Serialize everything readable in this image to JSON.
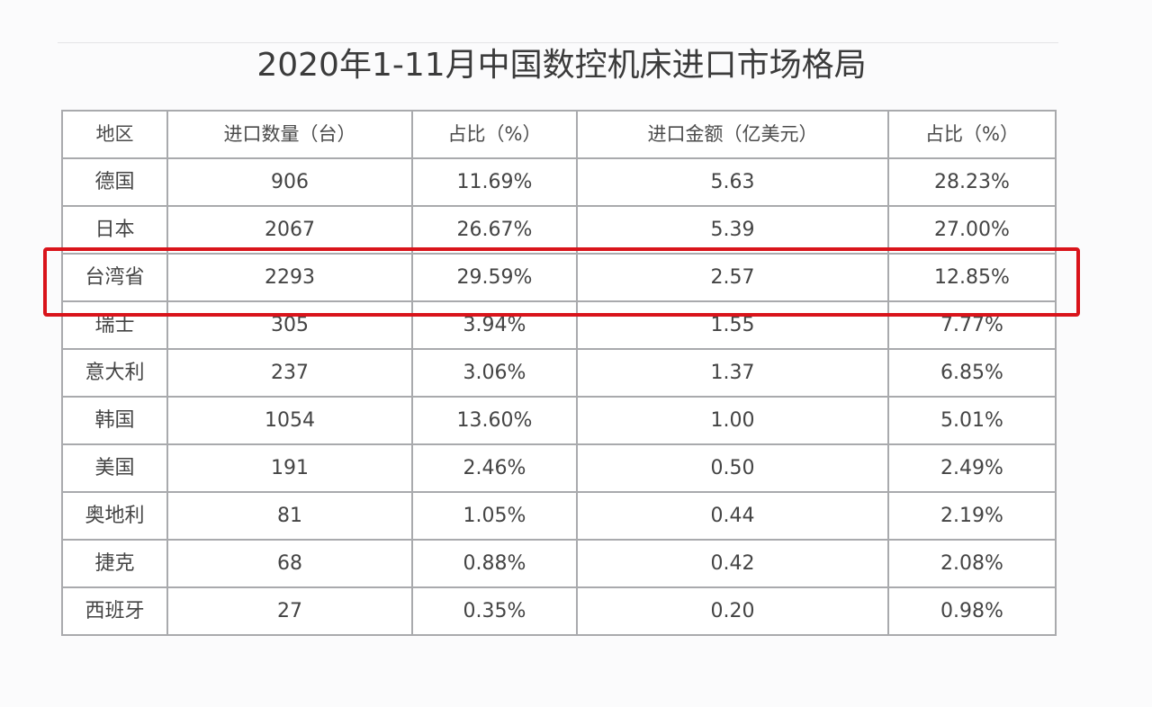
{
  "title": "2020年1-11月中国数控机床进口市场格局",
  "table": {
    "headers": [
      "地区",
      "进口数量（台）",
      "占比（%）",
      "进口金额（亿美元）",
      "占比（%）"
    ],
    "rows": [
      [
        "德国",
        "906",
        "11.69%",
        "5.63",
        "28.23%"
      ],
      [
        "日本",
        "2067",
        "26.67%",
        "5.39",
        "27.00%"
      ],
      [
        "台湾省",
        "2293",
        "29.59%",
        "2.57",
        "12.85%"
      ],
      [
        "瑞士",
        "305",
        "3.94%",
        "1.55",
        "7.77%"
      ],
      [
        "意大利",
        "237",
        "3.06%",
        "1.37",
        "6.85%"
      ],
      [
        "韩国",
        "1054",
        "13.60%",
        "1.00",
        "5.01%"
      ],
      [
        "美国",
        "191",
        "2.46%",
        "0.50",
        "2.49%"
      ],
      [
        "奥地利",
        "81",
        "1.05%",
        "0.44",
        "2.19%"
      ],
      [
        "捷克",
        "68",
        "0.88%",
        "0.42",
        "2.08%"
      ],
      [
        "西班牙",
        "27",
        "0.35%",
        "0.20",
        "0.98%"
      ]
    ]
  },
  "highlight": {
    "row_index": 2,
    "color": "#d9141b"
  }
}
